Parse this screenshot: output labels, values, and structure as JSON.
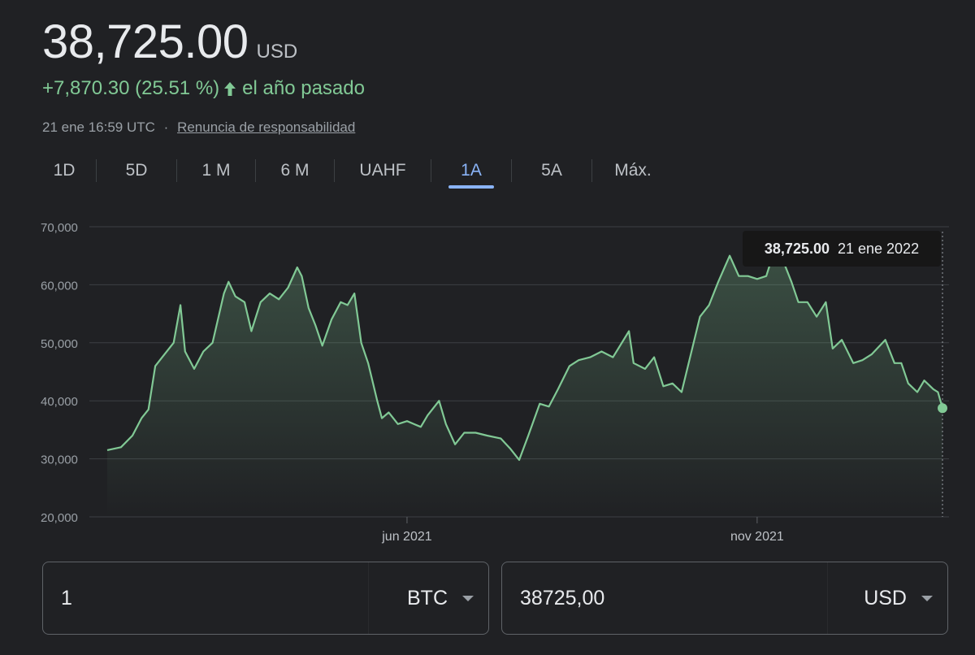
{
  "quote": {
    "price": "38,725.00",
    "currency": "USD",
    "change": "+7,870.30 (25.51 %)",
    "change_period": "el año pasado",
    "timestamp": "21 ene 16:59 UTC",
    "separator": "·",
    "disclaimer": "Renuncia de responsabilidad",
    "positive_color": "#81c995"
  },
  "tabs": [
    {
      "label": "1D"
    },
    {
      "label": "5D"
    },
    {
      "label": "1 M"
    },
    {
      "label": "6 M"
    },
    {
      "label": "UAHF"
    },
    {
      "label": "1A"
    },
    {
      "label": "5A"
    },
    {
      "label": "Máx."
    }
  ],
  "active_tab": "1A",
  "tooltip": {
    "value": "38,725.00",
    "date": "21 ene 2022"
  },
  "converter": {
    "from_amount": "1",
    "from_currency": "BTC",
    "to_amount": "38725,00",
    "to_currency": "USD"
  },
  "chart_data": {
    "type": "area",
    "line_color": "#81c995",
    "ylim": [
      20000,
      70000
    ],
    "y_ticks": [
      {
        "value": 70000,
        "label": "70,000"
      },
      {
        "value": 60000,
        "label": "60,000"
      },
      {
        "value": 50000,
        "label": "50,000"
      },
      {
        "value": 40000,
        "label": "40,000"
      },
      {
        "value": 30000,
        "label": "30,000"
      },
      {
        "value": 20000,
        "label": "20,000"
      }
    ],
    "xlim": [
      "2021-01-21",
      "2022-01-21"
    ],
    "x_ticks": [
      {
        "date": "2021-06-01",
        "label": "jun 2021"
      },
      {
        "date": "2021-11-01",
        "label": "nov 2021"
      }
    ],
    "grid": true,
    "series": [
      {
        "points": [
          [
            "2021-01-21",
            31500
          ],
          [
            "2021-01-27",
            32000
          ],
          [
            "2021-02-01",
            34000
          ],
          [
            "2021-02-05",
            37000
          ],
          [
            "2021-02-08",
            38500
          ],
          [
            "2021-02-11",
            46000
          ],
          [
            "2021-02-15",
            48000
          ],
          [
            "2021-02-19",
            50000
          ],
          [
            "2021-02-22",
            56500
          ],
          [
            "2021-02-24",
            48500
          ],
          [
            "2021-02-28",
            45500
          ],
          [
            "2021-03-04",
            48500
          ],
          [
            "2021-03-08",
            50000
          ],
          [
            "2021-03-13",
            58500
          ],
          [
            "2021-03-15",
            60500
          ],
          [
            "2021-03-18",
            58000
          ],
          [
            "2021-03-22",
            57000
          ],
          [
            "2021-03-25",
            52000
          ],
          [
            "2021-03-29",
            57000
          ],
          [
            "2021-04-02",
            58500
          ],
          [
            "2021-04-06",
            57500
          ],
          [
            "2021-04-10",
            59500
          ],
          [
            "2021-04-14",
            63000
          ],
          [
            "2021-04-16",
            61500
          ],
          [
            "2021-04-19",
            56000
          ],
          [
            "2021-04-22",
            53000
          ],
          [
            "2021-04-25",
            49500
          ],
          [
            "2021-04-29",
            54000
          ],
          [
            "2021-05-03",
            57000
          ],
          [
            "2021-05-06",
            56500
          ],
          [
            "2021-05-09",
            58500
          ],
          [
            "2021-05-12",
            50000
          ],
          [
            "2021-05-15",
            46500
          ],
          [
            "2021-05-19",
            40000
          ],
          [
            "2021-05-21",
            37000
          ],
          [
            "2021-05-24",
            38000
          ],
          [
            "2021-05-28",
            36000
          ],
          [
            "2021-06-01",
            36500
          ],
          [
            "2021-06-07",
            35500
          ],
          [
            "2021-06-10",
            37500
          ],
          [
            "2021-06-15",
            40000
          ],
          [
            "2021-06-18",
            36000
          ],
          [
            "2021-06-22",
            32500
          ],
          [
            "2021-06-26",
            34500
          ],
          [
            "2021-07-01",
            34500
          ],
          [
            "2021-07-06",
            34000
          ],
          [
            "2021-07-12",
            33500
          ],
          [
            "2021-07-16",
            31800
          ],
          [
            "2021-07-20",
            29800
          ],
          [
            "2021-07-24",
            34000
          ],
          [
            "2021-07-29",
            39500
          ],
          [
            "2021-08-02",
            39000
          ],
          [
            "2021-08-06",
            42000
          ],
          [
            "2021-08-11",
            46000
          ],
          [
            "2021-08-15",
            47000
          ],
          [
            "2021-08-20",
            47500
          ],
          [
            "2021-08-25",
            48500
          ],
          [
            "2021-08-30",
            47500
          ],
          [
            "2021-09-06",
            52000
          ],
          [
            "2021-09-08",
            46500
          ],
          [
            "2021-09-13",
            45500
          ],
          [
            "2021-09-17",
            47500
          ],
          [
            "2021-09-21",
            42500
          ],
          [
            "2021-09-25",
            43000
          ],
          [
            "2021-09-29",
            41500
          ],
          [
            "2021-10-03",
            48000
          ],
          [
            "2021-10-07",
            54500
          ],
          [
            "2021-10-11",
            56500
          ],
          [
            "2021-10-15",
            60500
          ],
          [
            "2021-10-20",
            65000
          ],
          [
            "2021-10-24",
            61500
          ],
          [
            "2021-10-28",
            61500
          ],
          [
            "2021-11-01",
            61000
          ],
          [
            "2021-11-05",
            61500
          ],
          [
            "2021-11-09",
            66500
          ],
          [
            "2021-11-12",
            64500
          ],
          [
            "2021-11-16",
            60500
          ],
          [
            "2021-11-19",
            57000
          ],
          [
            "2021-11-23",
            57000
          ],
          [
            "2021-11-27",
            54500
          ],
          [
            "2021-12-01",
            57000
          ],
          [
            "2021-12-04",
            49000
          ],
          [
            "2021-12-08",
            50500
          ],
          [
            "2021-12-13",
            46500
          ],
          [
            "2021-12-17",
            47000
          ],
          [
            "2021-12-21",
            48000
          ],
          [
            "2021-12-27",
            50500
          ],
          [
            "2021-12-31",
            46500
          ],
          [
            "2022-01-03",
            46500
          ],
          [
            "2022-01-06",
            43000
          ],
          [
            "2022-01-10",
            41500
          ],
          [
            "2022-01-13",
            43500
          ],
          [
            "2022-01-17",
            42000
          ],
          [
            "2022-01-19",
            41500
          ],
          [
            "2022-01-21",
            38725
          ]
        ]
      }
    ]
  }
}
